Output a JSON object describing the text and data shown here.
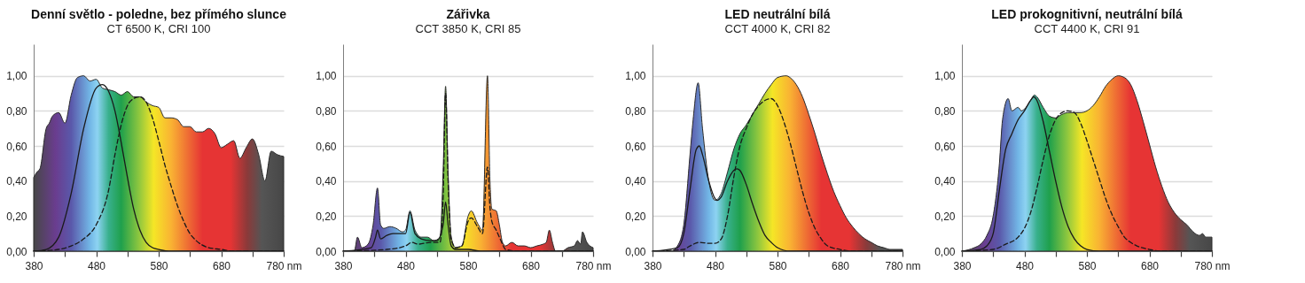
{
  "chart_data": [
    {
      "type": "area",
      "title": "Denní světlo - poledne, bez přímého slunce",
      "subtitle": "CT 6500 K, CRI 100",
      "xlim": [
        380,
        780
      ],
      "ylim": [
        0,
        1.18
      ],
      "grid": "y",
      "xticks": [
        380,
        {
          "value": 430,
          "label": null
        },
        480,
        {
          "value": 530,
          "label": null
        },
        580,
        {
          "value": 630,
          "label": null
        },
        680,
        {
          "value": 730,
          "label": null
        },
        {
          "value": 780,
          "label": "780 nm"
        }
      ],
      "yticks": [
        {
          "value": 0,
          "label": "0,00"
        },
        {
          "value": 0.2,
          "label": "0,20"
        },
        {
          "value": 0.4,
          "label": "0,40"
        },
        {
          "value": 0.6,
          "label": "0,60"
        },
        {
          "value": 0.8,
          "label": "0,80"
        },
        {
          "value": 1,
          "label": "1,00"
        }
      ],
      "series": [
        {
          "type": "area",
          "color": "#2b2b2b",
          "x": [
            380,
            385,
            390,
            400,
            405,
            410,
            420,
            430,
            440,
            450,
            460,
            470,
            480,
            490,
            500,
            510,
            520,
            530,
            540,
            550,
            560,
            570,
            580,
            590,
            600,
            610,
            620,
            630,
            640,
            650,
            660,
            670,
            680,
            690,
            700,
            710,
            720,
            730,
            740,
            750,
            760,
            770,
            780
          ],
          "values": [
            0.42,
            0.45,
            0.47,
            0.7,
            0.73,
            0.77,
            0.79,
            0.73,
            0.89,
            0.99,
            1.0,
            0.97,
            0.98,
            0.93,
            0.92,
            0.91,
            0.89,
            0.91,
            0.88,
            0.88,
            0.85,
            0.83,
            0.82,
            0.76,
            0.76,
            0.75,
            0.71,
            0.71,
            0.68,
            0.68,
            0.7,
            0.67,
            0.59,
            0.61,
            0.63,
            0.53,
            0.59,
            0.64,
            0.55,
            0.4,
            0.57,
            0.55,
            0.54
          ]
        },
        {
          "type": "line",
          "color": "#1a1a1a",
          "x": [
            380,
            400,
            420,
            440,
            460,
            480,
            490,
            500,
            510,
            520,
            530,
            540,
            550,
            560,
            570,
            580,
            600,
            780
          ],
          "values": [
            0,
            0.01,
            0.08,
            0.33,
            0.7,
            0.93,
            0.95,
            0.91,
            0.8,
            0.62,
            0.42,
            0.24,
            0.12,
            0.05,
            0.02,
            0.01,
            0,
            0
          ]
        },
        {
          "type": "line",
          "line_style": "dashed",
          "color": "#1a1a1a",
          "x": [
            380,
            420,
            440,
            460,
            480,
            500,
            510,
            520,
            530,
            540,
            550,
            560,
            570,
            580,
            590,
            600,
            610,
            620,
            630,
            640,
            660,
            680,
            700,
            780
          ],
          "values": [
            0,
            0.01,
            0.03,
            0.07,
            0.15,
            0.35,
            0.55,
            0.72,
            0.83,
            0.87,
            0.88,
            0.85,
            0.76,
            0.63,
            0.49,
            0.37,
            0.26,
            0.17,
            0.1,
            0.06,
            0.02,
            0.01,
            0,
            0
          ]
        }
      ]
    },
    {
      "type": "area",
      "title": "Zářivka",
      "subtitle": "CCT 3850 K, CRI 85",
      "xlim": [
        380,
        780
      ],
      "ylim": [
        0,
        1.18
      ],
      "grid": "y",
      "xticks": [
        380,
        {
          "value": 430,
          "label": null
        },
        480,
        {
          "value": 530,
          "label": null
        },
        580,
        {
          "value": 630,
          "label": null
        },
        680,
        {
          "value": 730,
          "label": null
        },
        {
          "value": 780,
          "label": "780 nm"
        }
      ],
      "yticks": [
        {
          "value": 0,
          "label": "0,00"
        },
        {
          "value": 0.2,
          "label": "0,20"
        },
        {
          "value": 0.4,
          "label": "0,40"
        },
        {
          "value": 0.6,
          "label": "0,60"
        },
        {
          "value": 0.8,
          "label": "0,80"
        },
        {
          "value": 1,
          "label": "1,00"
        }
      ],
      "series": [
        {
          "type": "area",
          "color": "#2b2b2b",
          "x": [
            380,
            398,
            403,
            410,
            420,
            428,
            435,
            440,
            445,
            455,
            465,
            475,
            480,
            487,
            495,
            505,
            515,
            525,
            535,
            540,
            544,
            548,
            553,
            560,
            570,
            580,
            585,
            595,
            603,
            611,
            615,
            618,
            625,
            630,
            635,
            640,
            650,
            660,
            670,
            680,
            690,
            700,
            705,
            710,
            715,
            720,
            730,
            740,
            750,
            755,
            760,
            763,
            770,
            780
          ],
          "values": [
            0,
            0,
            0.08,
            0.02,
            0.04,
            0.15,
            0.36,
            0.15,
            0.13,
            0.14,
            0.13,
            0.11,
            0.12,
            0.23,
            0.12,
            0.08,
            0.08,
            0.06,
            0.08,
            0.45,
            0.94,
            0.45,
            0.08,
            0.02,
            0.03,
            0.2,
            0.23,
            0.16,
            0.12,
            1.0,
            0.4,
            0.24,
            0.23,
            0.15,
            0.05,
            0.03,
            0.05,
            0.03,
            0.03,
            0.02,
            0.03,
            0.04,
            0.05,
            0.12,
            0.05,
            0,
            0,
            0.02,
            0.03,
            0.06,
            0.04,
            0.11,
            0.05,
            0.02
          ]
        },
        {
          "type": "line",
          "color": "#1a1a1a",
          "x": [
            380,
            425,
            432,
            435,
            440,
            450,
            460,
            470,
            480,
            487,
            495,
            505,
            520,
            530,
            540,
            544,
            548,
            553,
            560,
            580,
            600,
            780
          ],
          "values": [
            0,
            0.02,
            0.08,
            0.12,
            0.07,
            0.09,
            0.1,
            0.1,
            0.1,
            0.22,
            0.1,
            0.07,
            0.06,
            0.06,
            0.15,
            0.28,
            0.15,
            0.03,
            0.01,
            0.01,
            0,
            0
          ]
        },
        {
          "type": "line",
          "line_style": "dashed",
          "color": "#1a1a1a",
          "x": [
            380,
            450,
            480,
            490,
            500,
            520,
            535,
            540,
            544,
            548,
            553,
            560,
            570,
            580,
            585,
            595,
            603,
            611,
            615,
            618,
            625,
            630,
            635,
            640,
            660,
            780
          ],
          "values": [
            0,
            0.01,
            0.03,
            0.05,
            0.04,
            0.05,
            0.05,
            0.3,
            0.9,
            0.4,
            0.07,
            0.02,
            0.03,
            0.17,
            0.19,
            0.14,
            0.1,
            0.48,
            0.25,
            0.17,
            0.12,
            0.08,
            0.04,
            0.01,
            0,
            0
          ]
        }
      ]
    },
    {
      "type": "area",
      "title": "LED neutrální bílá",
      "subtitle": "CCT 4000 K,  CRI 82",
      "xlim": [
        380,
        780
      ],
      "ylim": [
        0,
        1.18
      ],
      "grid": "y",
      "xticks": [
        380,
        {
          "value": 430,
          "label": null
        },
        480,
        {
          "value": 530,
          "label": null
        },
        580,
        {
          "value": 630,
          "label": null
        },
        680,
        {
          "value": 730,
          "label": null
        },
        {
          "value": 780,
          "label": "780 nm"
        }
      ],
      "yticks": [
        {
          "value": 0,
          "label": "0,00"
        },
        {
          "value": 0.2,
          "label": "0,20"
        },
        {
          "value": 0.4,
          "label": "0,40"
        },
        {
          "value": 0.6,
          "label": "0,60"
        },
        {
          "value": 0.8,
          "label": "0,80"
        },
        {
          "value": 1,
          "label": "1,00"
        }
      ],
      "series": [
        {
          "type": "area",
          "color": "#2b2b2b",
          "x": [
            380,
            410,
            420,
            430,
            440,
            445,
            453,
            460,
            470,
            480,
            490,
            500,
            510,
            520,
            530,
            540,
            550,
            560,
            570,
            580,
            594,
            600,
            610,
            620,
            630,
            640,
            650,
            660,
            670,
            680,
            690,
            700,
            710,
            720,
            730,
            740,
            750,
            760,
            780
          ],
          "values": [
            0,
            0,
            0.03,
            0.15,
            0.55,
            0.75,
            0.96,
            0.7,
            0.4,
            0.29,
            0.33,
            0.45,
            0.58,
            0.67,
            0.72,
            0.78,
            0.84,
            0.9,
            0.95,
            0.99,
            1.0,
            0.99,
            0.95,
            0.88,
            0.78,
            0.67,
            0.55,
            0.44,
            0.34,
            0.26,
            0.19,
            0.14,
            0.1,
            0.07,
            0.05,
            0.03,
            0.02,
            0.01,
            0.01
          ]
        },
        {
          "type": "line",
          "color": "#1a1a1a",
          "x": [
            380,
            420,
            430,
            440,
            450,
            455,
            460,
            470,
            480,
            483,
            490,
            500,
            510,
            515,
            520,
            530,
            540,
            550,
            560,
            570,
            580,
            600,
            780
          ],
          "values": [
            0,
            0.02,
            0.1,
            0.35,
            0.58,
            0.6,
            0.55,
            0.4,
            0.3,
            0.29,
            0.31,
            0.4,
            0.46,
            0.47,
            0.46,
            0.38,
            0.27,
            0.17,
            0.09,
            0.05,
            0.02,
            0,
            0
          ]
        },
        {
          "type": "line",
          "line_style": "dashed",
          "color": "#1a1a1a",
          "x": [
            380,
            430,
            440,
            455,
            470,
            480,
            490,
            500,
            510,
            520,
            530,
            540,
            550,
            560,
            570,
            580,
            590,
            600,
            610,
            620,
            630,
            640,
            650,
            660,
            680,
            700,
            780
          ],
          "values": [
            0,
            0.01,
            0.03,
            0.05,
            0.045,
            0.045,
            0.07,
            0.2,
            0.42,
            0.6,
            0.7,
            0.78,
            0.83,
            0.86,
            0.87,
            0.83,
            0.74,
            0.62,
            0.48,
            0.34,
            0.22,
            0.13,
            0.07,
            0.03,
            0.01,
            0,
            0
          ]
        }
      ]
    },
    {
      "type": "area",
      "title": "LED prokognitivní, neutrální bílá",
      "subtitle": "CCT 4400 K, CRI 91",
      "xlim": [
        380,
        780
      ],
      "ylim": [
        0,
        1.18
      ],
      "grid": "y",
      "xticks": [
        380,
        {
          "value": 430,
          "label": null
        },
        480,
        {
          "value": 530,
          "label": null
        },
        580,
        {
          "value": 630,
          "label": null
        },
        680,
        {
          "value": 730,
          "label": null
        },
        {
          "value": 780,
          "label": "780 nm"
        }
      ],
      "yticks": [
        {
          "value": 0,
          "label": "0,00"
        },
        {
          "value": 0.2,
          "label": "0,20"
        },
        {
          "value": 0.4,
          "label": "0,40"
        },
        {
          "value": 0.6,
          "label": "0,60"
        },
        {
          "value": 0.8,
          "label": "0,80"
        },
        {
          "value": 1,
          "label": "1,00"
        }
      ],
      "series": [
        {
          "type": "area",
          "color": "#2b2b2b",
          "x": [
            380,
            400,
            410,
            420,
            430,
            440,
            445,
            454,
            460,
            470,
            475,
            480,
            490,
            496,
            500,
            510,
            520,
            530,
            540,
            550,
            560,
            570,
            580,
            590,
            600,
            610,
            620,
            630,
            640,
            650,
            660,
            670,
            680,
            690,
            700,
            710,
            720,
            730,
            740,
            750,
            760,
            765,
            770,
            780
          ],
          "values": [
            0,
            0.02,
            0.04,
            0.09,
            0.2,
            0.5,
            0.75,
            0.87,
            0.8,
            0.82,
            0.8,
            0.81,
            0.86,
            0.89,
            0.88,
            0.82,
            0.77,
            0.76,
            0.78,
            0.79,
            0.79,
            0.79,
            0.8,
            0.83,
            0.88,
            0.94,
            0.98,
            1.0,
            0.99,
            0.95,
            0.86,
            0.74,
            0.61,
            0.48,
            0.37,
            0.28,
            0.22,
            0.18,
            0.15,
            0.11,
            0.09,
            0.1,
            0.08,
            0.08
          ]
        },
        {
          "type": "line",
          "color": "#1a1a1a",
          "x": [
            380,
            410,
            420,
            430,
            440,
            450,
            460,
            470,
            480,
            490,
            495,
            500,
            510,
            520,
            530,
            540,
            550,
            560,
            570,
            580,
            600,
            780
          ],
          "values": [
            0,
            0.01,
            0.03,
            0.1,
            0.35,
            0.58,
            0.67,
            0.75,
            0.8,
            0.86,
            0.88,
            0.86,
            0.74,
            0.57,
            0.4,
            0.25,
            0.14,
            0.07,
            0.03,
            0.01,
            0,
            0
          ]
        },
        {
          "type": "line",
          "line_style": "dashed",
          "color": "#1a1a1a",
          "x": [
            380,
            430,
            450,
            470,
            480,
            490,
            500,
            510,
            520,
            530,
            540,
            550,
            560,
            570,
            580,
            590,
            600,
            610,
            620,
            630,
            640,
            650,
            660,
            680,
            700,
            780
          ],
          "values": [
            0,
            0.01,
            0.04,
            0.08,
            0.13,
            0.22,
            0.36,
            0.52,
            0.66,
            0.75,
            0.79,
            0.8,
            0.79,
            0.73,
            0.63,
            0.52,
            0.41,
            0.3,
            0.21,
            0.14,
            0.08,
            0.05,
            0.03,
            0.01,
            0,
            0
          ]
        }
      ]
    }
  ]
}
